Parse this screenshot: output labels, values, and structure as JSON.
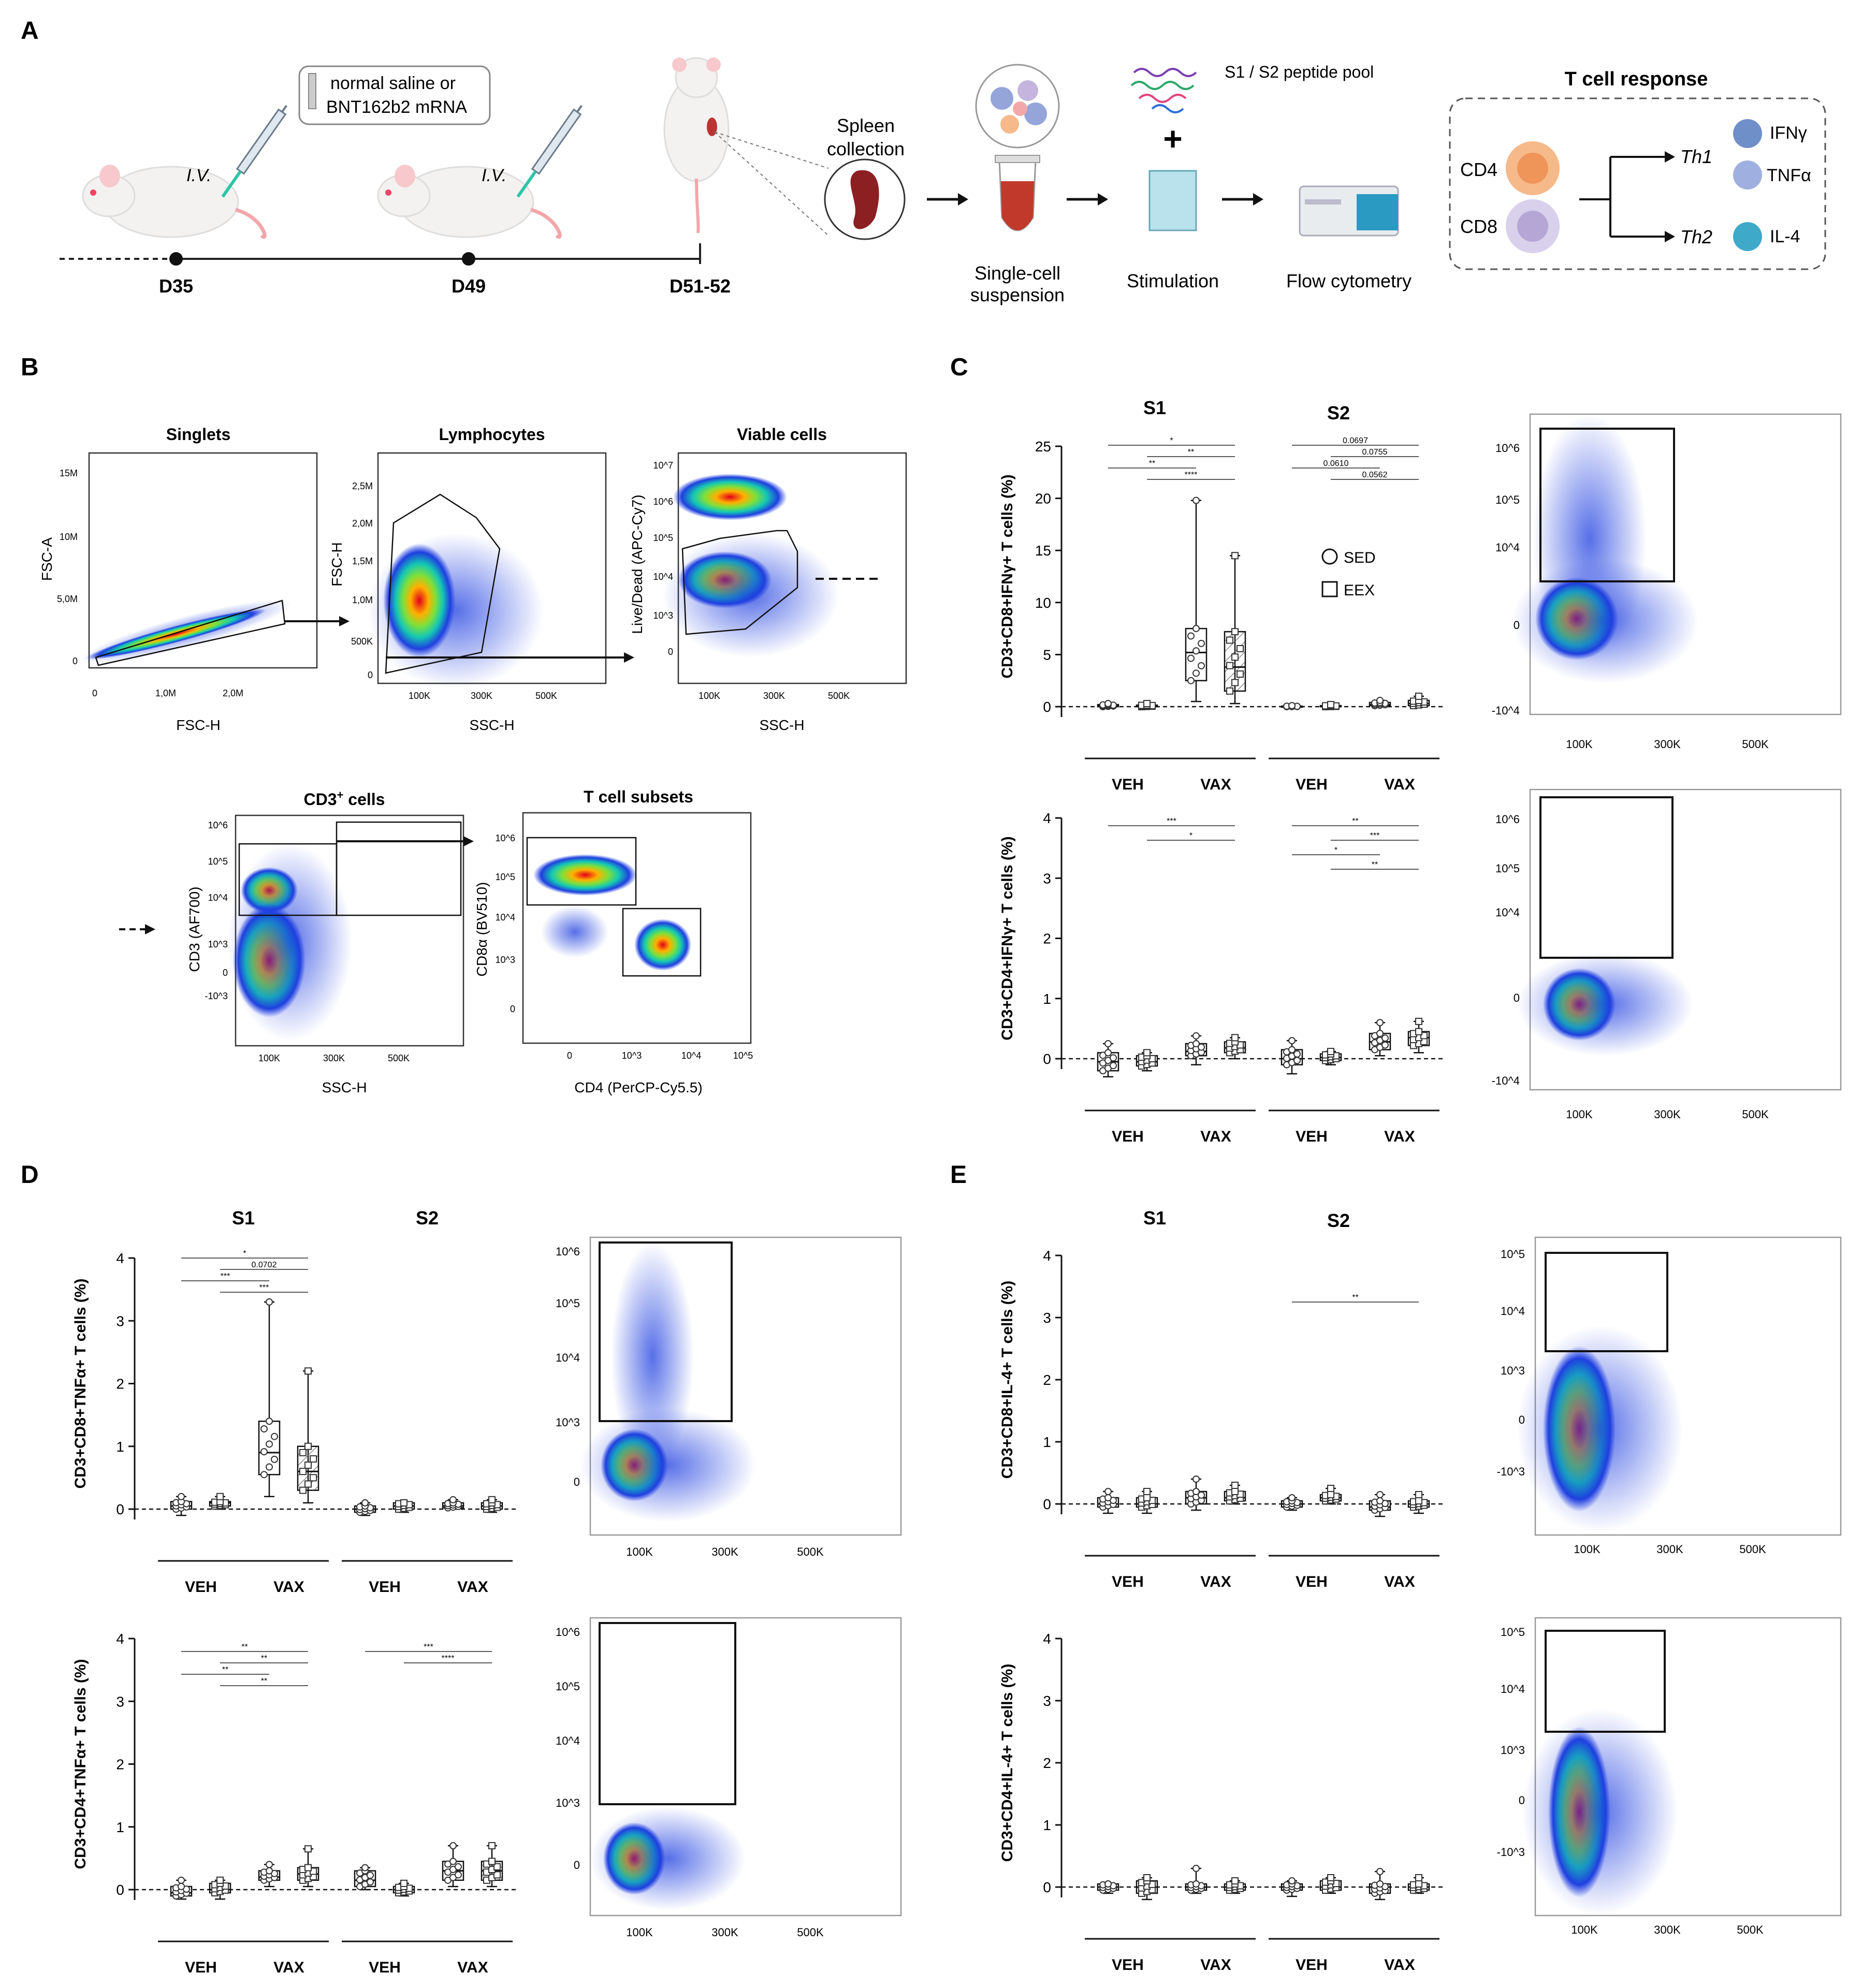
{
  "panel_labels": {
    "A": "A",
    "B": "B",
    "C": "C",
    "D": "D",
    "E": "E"
  },
  "panelA": {
    "injection_box": [
      "normal saline or",
      "BNT162b2 mRNA"
    ],
    "iv": "I.V.",
    "timeline": [
      "D35",
      "D49",
      "D51-52"
    ],
    "spleen": [
      "Spleen",
      "collection"
    ],
    "peptide_pool": "S1 / S2 peptide pool",
    "steps": {
      "single_cell": [
        "Single-cell",
        "suspension"
      ],
      "stimulation": "Stimulation",
      "flow": "Flow cytometry"
    },
    "tcell_title": "T cell response",
    "cells": [
      "CD4",
      "CD8"
    ],
    "th": [
      "Th1",
      "Th2"
    ],
    "cytokines": [
      "IFNγ",
      "TNFα",
      "IL-4"
    ],
    "colors": {
      "cd4": "#f6b98a",
      "cd8": "#c5b5de",
      "ifng": "#6f8fc8",
      "tnfa": "#9fb0e0",
      "il4": "#3fa9c9",
      "tube": "#c0392b"
    }
  },
  "panelB": {
    "plots": [
      {
        "title": "Singlets",
        "x": "FSC-H",
        "y": "FSC-A",
        "xticks": [
          "0",
          "1,0M",
          "2,0M"
        ],
        "yticks": [
          "15M",
          "10M",
          "5,0M",
          "0"
        ]
      },
      {
        "title": "Lymphocytes",
        "x": "SSC-H",
        "y": "FSC-H",
        "xticks": [
          "100K",
          "300K",
          "500K"
        ],
        "yticks": [
          "2,5M",
          "2,0M",
          "1,5M",
          "1,0M",
          "500K",
          "0"
        ]
      },
      {
        "title": "Viable cells",
        "x": "SSC-H",
        "y": "Live/Dead (APC-Cy7)",
        "xticks": [
          "100K",
          "300K",
          "500K"
        ],
        "yticks": [
          "10^7",
          "10^6",
          "10^5",
          "10^4",
          "10^3",
          "0"
        ]
      },
      {
        "title": "CD3+ cells",
        "x": "SSC-H",
        "y": "CD3 (AF700)",
        "xticks": [
          "100K",
          "300K",
          "500K"
        ],
        "yticks": [
          "10^6",
          "10^5",
          "10^4",
          "10^3",
          "0",
          "-10^3"
        ]
      },
      {
        "title": "T cell subsets",
        "x": "CD4 (PerCP-Cy5.5)",
        "y": "CD8α (BV510)",
        "xticks": [
          "0",
          "10^3",
          "10^4",
          "10^5"
        ],
        "yticks": [
          "10^6",
          "10^5",
          "10^4",
          "10^3",
          "0"
        ]
      }
    ]
  },
  "groups": {
    "veh": "VEH",
    "vax": "VAX",
    "s1": "S1",
    "s2": "S2"
  },
  "legend": {
    "sed": "SED",
    "eex": "EEX"
  },
  "chart_data": [
    {
      "type": "box",
      "panel": "C",
      "ylabel": "CD3+CD8+IFNγ+ T cells (%)",
      "ylim": [
        0,
        25
      ],
      "yticks": [
        0,
        5,
        10,
        15,
        20,
        25
      ],
      "groups": [
        "S1 VEH SED",
        "S1 VEH EEX",
        "S1 VAX SED",
        "S1 VAX EEX",
        "S2 VEH SED",
        "S2 VEH EEX",
        "S2 VAX SED",
        "S2 VAX EEX"
      ],
      "median": [
        0.1,
        0.1,
        5.2,
        3.8,
        0,
        0,
        0.2,
        0.3
      ],
      "q1": [
        0,
        0,
        2.5,
        1.5,
        0,
        0,
        0.1,
        0.1
      ],
      "q3": [
        0.2,
        0.15,
        7.5,
        7.2,
        0.05,
        0.1,
        0.4,
        0.6
      ],
      "min": [
        0,
        0,
        0.5,
        0.3,
        -0.1,
        -0.1,
        0,
        0
      ],
      "max": [
        0.3,
        0.3,
        19.8,
        14.5,
        0.1,
        0.2,
        0.6,
        1.0
      ],
      "significance": [
        "*",
        "**",
        "**",
        "****",
        "0.0697",
        "0.0755",
        "0.0610",
        "0.0562"
      ]
    },
    {
      "type": "box",
      "panel": "C",
      "ylabel": "CD3+CD4+IFNγ+ T cells (%)",
      "ylim": [
        0,
        4
      ],
      "yticks": [
        0,
        1,
        2,
        3,
        4
      ],
      "groups": [
        "S1 VEH SED",
        "S1 VEH EEX",
        "S1 VAX SED",
        "S1 VAX EEX",
        "S2 VEH SED",
        "S2 VEH EEX",
        "S2 VAX SED",
        "S2 VAX EEX"
      ],
      "median": [
        -0.05,
        -0.05,
        0.12,
        0.18,
        0,
        0.02,
        0.28,
        0.35
      ],
      "q1": [
        -0.2,
        -0.12,
        0.05,
        0.1,
        -0.1,
        -0.03,
        0.15,
        0.22
      ],
      "q3": [
        0.1,
        0.05,
        0.25,
        0.28,
        0.15,
        0.08,
        0.42,
        0.45
      ],
      "min": [
        -0.3,
        -0.2,
        -0.1,
        0,
        -0.25,
        -0.1,
        0.05,
        0.1
      ],
      "max": [
        0.25,
        0.1,
        0.38,
        0.35,
        0.3,
        0.12,
        0.6,
        0.62
      ],
      "significance": [
        "***",
        "*",
        "**",
        "***",
        "*",
        "**"
      ]
    },
    {
      "type": "box",
      "panel": "D",
      "ylabel": "CD3+CD8+TNFα+ T cells (%)",
      "ylim": [
        0,
        4
      ],
      "yticks": [
        0,
        1,
        2,
        3,
        4
      ],
      "groups": [
        "S1 VEH SED",
        "S1 VEH EEX",
        "S1 VAX SED",
        "S1 VAX EEX",
        "S2 VEH SED",
        "S2 VEH EEX",
        "S2 VAX SED",
        "S2 VAX EEX"
      ],
      "median": [
        0.05,
        0.1,
        0.9,
        0.6,
        0,
        0.05,
        0.05,
        0.05
      ],
      "q1": [
        0,
        0.05,
        0.55,
        0.3,
        -0.05,
        0,
        0.02,
        0
      ],
      "q3": [
        0.12,
        0.12,
        1.4,
        1.0,
        0.05,
        0.1,
        0.1,
        0.1
      ],
      "min": [
        -0.1,
        0,
        0.2,
        0.1,
        -0.1,
        -0.05,
        0,
        -0.05
      ],
      "max": [
        0.2,
        0.2,
        3.3,
        2.2,
        0.1,
        0.1,
        0.15,
        0.15
      ],
      "significance": [
        "*",
        "0.0702",
        "***",
        "***"
      ]
    },
    {
      "type": "box",
      "panel": "D",
      "ylabel": "CD3+CD4+TNFα+ T cells (%)",
      "ylim": [
        0,
        4
      ],
      "yticks": [
        0,
        1,
        2,
        3,
        4
      ],
      "groups": [
        "S1 VEH SED",
        "S1 VEH EEX",
        "S1 VAX SED",
        "S1 VAX EEX",
        "S2 VEH SED",
        "S2 VEH EEX",
        "S2 VAX SED",
        "S2 VAX EEX"
      ],
      "median": [
        -0.05,
        0,
        0.2,
        0.25,
        0.15,
        0,
        0.3,
        0.3
      ],
      "q1": [
        -0.1,
        -0.05,
        0.15,
        0.15,
        0.05,
        -0.05,
        0.15,
        0.15
      ],
      "q3": [
        0.05,
        0.1,
        0.3,
        0.35,
        0.3,
        0.05,
        0.45,
        0.45
      ],
      "min": [
        -0.15,
        -0.15,
        0.05,
        0.05,
        0,
        -0.1,
        0.05,
        0.05
      ],
      "max": [
        0.15,
        0.15,
        0.4,
        0.65,
        0.35,
        0.1,
        0.7,
        0.7
      ],
      "significance": [
        "**",
        "**",
        "**",
        "**",
        "***",
        "****"
      ]
    },
    {
      "type": "box",
      "panel": "E",
      "ylabel": "CD3+CD8+IL-4+ T cells (%)",
      "ylim": [
        0,
        4
      ],
      "yticks": [
        0,
        1,
        2,
        3,
        4
      ],
      "groups": [
        "S1 VEH SED",
        "S1 VEH EEX",
        "S1 VAX SED",
        "S1 VAX EEX",
        "S2 VEH SED",
        "S2 VEH EEX",
        "S2 VAX SED",
        "S2 VAX EEX"
      ],
      "median": [
        0,
        0,
        0.1,
        0.1,
        0,
        0.1,
        -0.05,
        0
      ],
      "q1": [
        -0.05,
        -0.05,
        0,
        0.05,
        -0.05,
        0.05,
        -0.1,
        -0.05
      ],
      "q3": [
        0.1,
        0.1,
        0.2,
        0.2,
        0.05,
        0.15,
        0.05,
        0.05
      ],
      "min": [
        -0.15,
        -0.15,
        -0.1,
        0,
        -0.1,
        0,
        -0.2,
        -0.15
      ],
      "max": [
        0.2,
        0.2,
        0.4,
        0.3,
        0.1,
        0.25,
        0.15,
        0.15
      ],
      "significance": [
        "**"
      ]
    },
    {
      "type": "box",
      "panel": "E",
      "ylabel": "CD3+CD4+IL-4+ T cells (%)",
      "ylim": [
        0,
        4
      ],
      "yticks": [
        0,
        1,
        2,
        3,
        4
      ],
      "groups": [
        "S1 VEH SED",
        "S1 VEH EEX",
        "S1 VAX SED",
        "S1 VAX EEX",
        "S2 VEH SED",
        "S2 VEH EEX",
        "S2 VAX SED",
        "S2 VAX EEX"
      ],
      "median": [
        0,
        0,
        0,
        0,
        0,
        0,
        0,
        0
      ],
      "q1": [
        -0.05,
        -0.1,
        -0.05,
        -0.05,
        -0.05,
        -0.05,
        -0.1,
        -0.05
      ],
      "q3": [
        0.05,
        0.1,
        0.05,
        0.05,
        0.05,
        0.1,
        0.05,
        0.05
      ],
      "min": [
        -0.1,
        -0.2,
        -0.1,
        -0.1,
        -0.15,
        -0.1,
        -0.2,
        -0.1
      ],
      "max": [
        0.05,
        0.15,
        0.3,
        0.1,
        0.1,
        0.15,
        0.25,
        0.15
      ],
      "significance": []
    }
  ],
  "flow_axes": {
    "x_ticks": [
      "100K",
      "300K",
      "500K"
    ],
    "y_ticks_big": [
      "10^6",
      "10^5",
      "10^4",
      "0",
      "-10^4"
    ],
    "y_ticks_small": [
      "10^5",
      "10^4",
      "10^3",
      "0",
      "-10^3"
    ],
    "y_ticks_d": [
      "10^6",
      "10^5",
      "10^4",
      "10^3",
      "0"
    ]
  }
}
